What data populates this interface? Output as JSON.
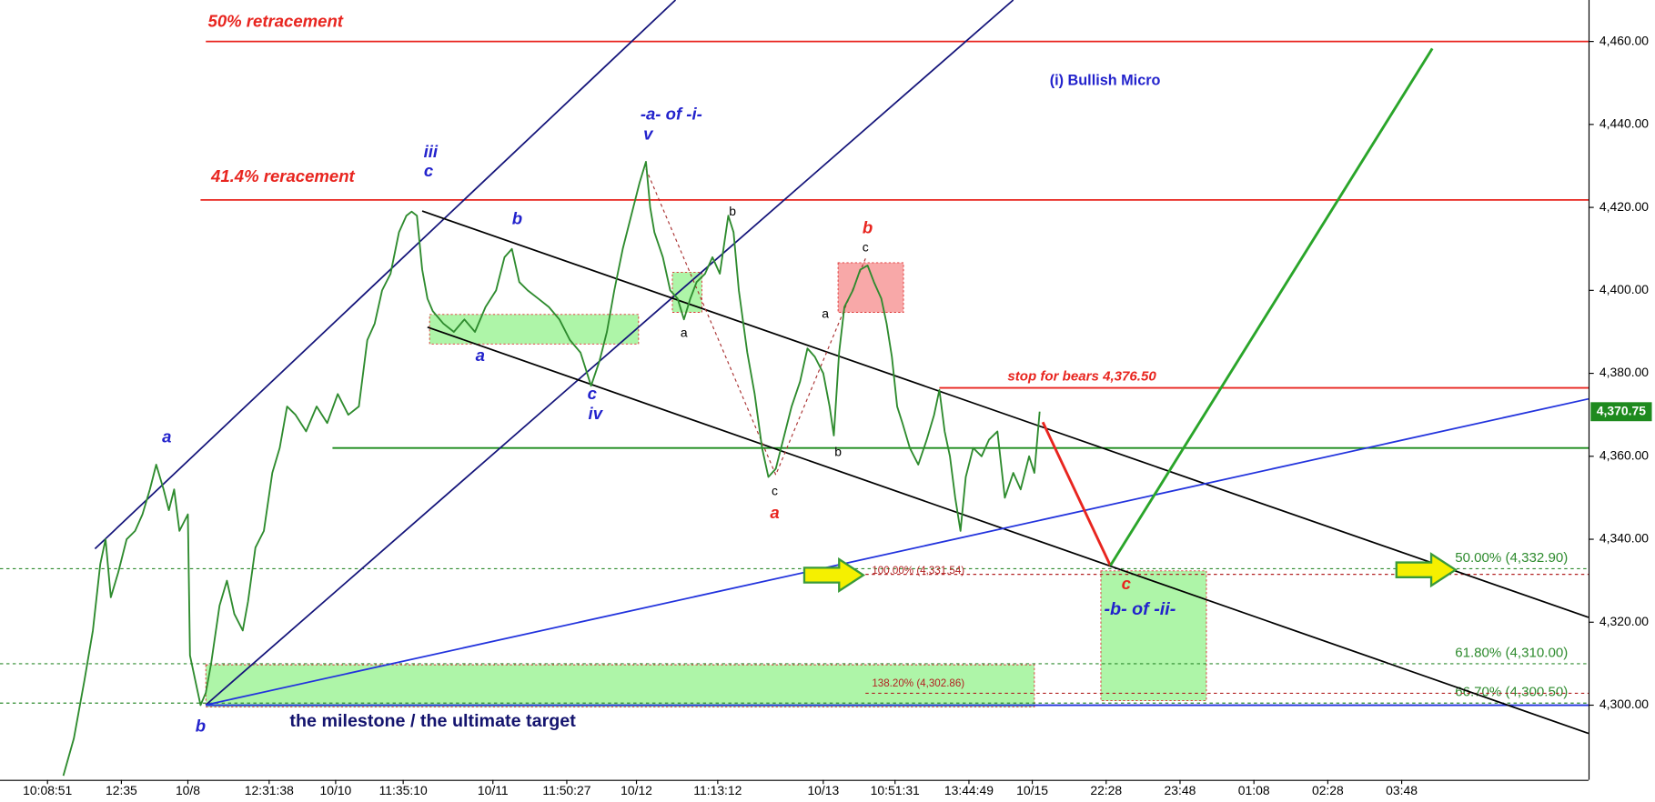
{
  "chart_data": {
    "type": "line",
    "color": "#2e8b2e",
    "x": [
      60,
      70,
      80,
      88,
      95,
      100,
      105,
      112,
      120,
      128,
      135,
      142,
      148,
      155,
      160,
      165,
      170,
      178,
      180,
      185,
      190,
      195,
      200,
      208,
      215,
      222,
      230,
      235,
      242,
      250,
      258,
      265,
      272,
      280,
      290,
      300,
      310,
      320,
      330,
      340,
      348,
      355,
      362,
      370,
      378,
      385,
      390,
      395,
      400,
      405,
      410,
      420,
      430,
      440,
      450,
      460,
      470,
      478,
      485,
      492,
      500,
      510,
      520,
      530,
      540,
      550,
      560,
      568,
      575,
      582,
      590,
      596,
      600,
      606,
      612,
      616,
      620,
      628,
      635,
      642,
      648,
      654,
      660,
      668,
      675,
      682,
      690,
      695,
      700,
      708,
      715,
      722,
      728,
      735,
      742,
      750,
      758,
      765,
      772,
      780,
      786,
      790,
      795,
      800,
      808,
      815,
      822,
      828,
      835,
      840,
      845,
      850,
      855,
      862,
      870,
      878,
      885,
      890,
      895,
      900,
      905,
      910,
      915,
      922,
      930,
      937,
      945,
      952,
      960,
      967,
      975,
      980,
      985
    ],
    "values": [
      4283,
      4292,
      4306,
      4318,
      4334,
      4340,
      4326,
      4332,
      4340,
      4342,
      4346,
      4352,
      4358,
      4352,
      4347,
      4352,
      4342,
      4346,
      4312,
      4306,
      4300,
      4303,
      4310,
      4324,
      4330,
      4322,
      4318,
      4325,
      4338,
      4342,
      4356,
      4362,
      4372,
      4370,
      4366,
      4372,
      4368,
      4375,
      4370,
      4372,
      4388,
      4392,
      4400,
      4404,
      4414,
      4418,
      4419,
      4418,
      4405,
      4398,
      4395,
      4392,
      4390,
      4393,
      4390,
      4396,
      4400,
      4408,
      4410,
      4402,
      4400,
      4398,
      4396,
      4393,
      4388,
      4385,
      4377,
      4383,
      4390,
      4400,
      4410,
      4416,
      4420,
      4426,
      4431,
      4420,
      4414,
      4408,
      4400,
      4398,
      4393,
      4398,
      4402,
      4404,
      4408,
      4404,
      4418,
      4414,
      4400,
      4385,
      4375,
      4362,
      4355,
      4357,
      4364,
      4372,
      4378,
      4386,
      4384,
      4380,
      4372,
      4365,
      4385,
      4396,
      4400,
      4405,
      4406,
      4402,
      4398,
      4392,
      4384,
      4372,
      4368,
      4362,
      4358,
      4364,
      4370,
      4376,
      4366,
      4360,
      4350,
      4342,
      4355,
      4362,
      4360,
      4364,
      4366,
      4350,
      4356,
      4352,
      4360,
      4356,
      4370.75
    ],
    "xlim": [
      0,
      1505
    ],
    "ylim": [
      4282,
      4470
    ],
    "xticks": [
      {
        "value": 45,
        "label": "10:08:51"
      },
      {
        "value": 115,
        "label": "12:35"
      },
      {
        "value": 178,
        "label": "10/8"
      },
      {
        "value": 255,
        "label": "12:31:38"
      },
      {
        "value": 318,
        "label": "10/10"
      },
      {
        "value": 382,
        "label": "11:35:10"
      },
      {
        "value": 467,
        "label": "10/11"
      },
      {
        "value": 537,
        "label": "11:50:27"
      },
      {
        "value": 603,
        "label": "10/12"
      },
      {
        "value": 680,
        "label": "11:13:12"
      },
      {
        "value": 780,
        "label": "10/13"
      },
      {
        "value": 848,
        "label": "10:51:31"
      },
      {
        "value": 918,
        "label": "13:44:49"
      },
      {
        "value": 978,
        "label": "10/15"
      },
      {
        "value": 1048,
        "label": "22:28"
      },
      {
        "value": 1118,
        "label": "23:48"
      },
      {
        "value": 1188,
        "label": "01:08"
      },
      {
        "value": 1258,
        "label": "02:28"
      },
      {
        "value": 1328,
        "label": "03:48"
      }
    ],
    "yticks": [
      {
        "value": 4300,
        "label": "4,300.00"
      },
      {
        "value": 4320,
        "label": "4,320.00"
      },
      {
        "value": 4340,
        "label": "4,340.00"
      },
      {
        "value": 4360,
        "label": "4,360.00"
      },
      {
        "value": 4380,
        "label": "4,380.00"
      },
      {
        "value": 4400,
        "label": "4,400.00"
      },
      {
        "value": 4420,
        "label": "4,420.00"
      },
      {
        "value": 4440,
        "label": "4,440.00"
      },
      {
        "value": 4460,
        "label": "4,460.00"
      }
    ],
    "last_price": {
      "value": 4370.75,
      "label": "4,370.75"
    },
    "levels": [
      {
        "value": 4460,
        "color": "#e8251f"
      },
      {
        "value": 4421.8,
        "color": "#e8251f"
      },
      {
        "value": 4376.5,
        "color": "#e8251f"
      },
      {
        "value": 4362,
        "color": "#1a8a1a"
      },
      {
        "value": 4300,
        "color": "#2233dd"
      },
      {
        "value": 4332.9,
        "color": "#2e8b2e",
        "label": "50.00% (4,332.90)"
      },
      {
        "value": 4310,
        "color": "#2e8b2e",
        "label": "61.80% (4,310.00)"
      },
      {
        "value": 4300.5,
        "color": "#2e8b2e",
        "label": "66.70% (4,300.50)"
      },
      {
        "value": 4331.54,
        "color": "#b22222",
        "label": "100.00% (4,331.54)"
      },
      {
        "value": 4302.86,
        "color": "#b22222",
        "label": "138.20% (4,302.86)"
      }
    ],
    "annotations": [
      {
        "text": "50% retracement",
        "color": "#e8251f"
      },
      {
        "text": "41.4% reracement",
        "color": "#e8251f"
      },
      {
        "text": "iii",
        "color": "#2222cc"
      },
      {
        "text": "c",
        "color": "#2222cc"
      },
      {
        "text": "-a- of -i-",
        "color": "#2222cc"
      },
      {
        "text": "v",
        "color": "#2222cc"
      },
      {
        "text": "(i) Bullish Micro",
        "color": "#2222cc"
      },
      {
        "text": "b",
        "color": "#2222cc"
      },
      {
        "text": "a",
        "color": "#2222cc"
      },
      {
        "text": "c",
        "color": "#2222cc"
      },
      {
        "text": "iv",
        "color": "#2222cc"
      },
      {
        "text": "a",
        "color": "#2222cc"
      },
      {
        "text": "b",
        "color": "#2222cc"
      },
      {
        "text": "b",
        "color": "#000000"
      },
      {
        "text": "a",
        "color": "#000000"
      },
      {
        "text": "a",
        "color": "#000000"
      },
      {
        "text": "b",
        "color": "#000000"
      },
      {
        "text": "c",
        "color": "#000000"
      },
      {
        "text": "c",
        "color": "#000000"
      },
      {
        "text": "b",
        "color": "#e8251f"
      },
      {
        "text": "a",
        "color": "#e8251f"
      },
      {
        "text": "c",
        "color": "#e8251f"
      },
      {
        "text": "stop for bears 4,376.50",
        "color": "#e8251f"
      },
      {
        "text": "-b- of -ii-",
        "color": "#2222cc"
      },
      {
        "text": "the milestone / the ultimate target",
        "color": "#14146e"
      }
    ]
  }
}
